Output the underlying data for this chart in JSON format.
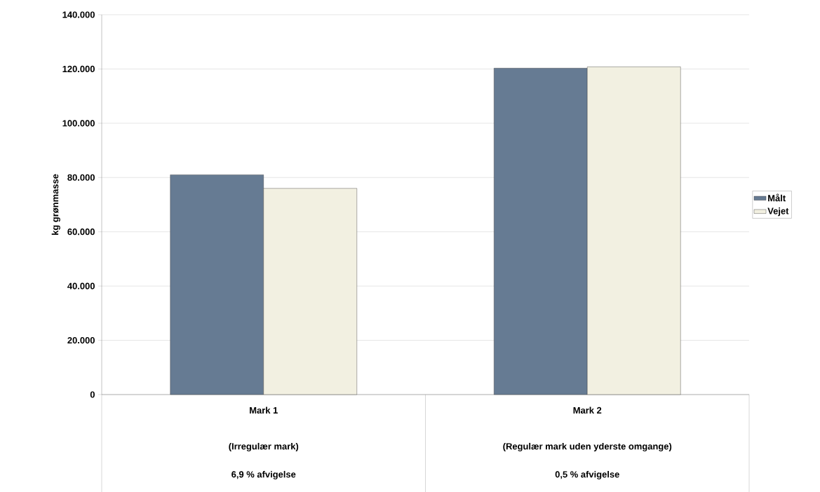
{
  "chart_data": {
    "type": "bar",
    "ylabel": "kg grønmasse",
    "categories": [
      "Mark 1",
      "Mark 2"
    ],
    "series": [
      {
        "name": "Målt",
        "color": "#667b93",
        "values": [
          81000,
          120300
        ]
      },
      {
        "name": "Vejet",
        "color": "#f2f0e1",
        "values": [
          76000,
          120800
        ]
      }
    ],
    "annotations": [
      "(Irregulær mark)",
      "(Regulær mark uden yderste omgange)",
      "6,9 % afvigelse",
      "0,5 % afvigelse"
    ],
    "ylim": [
      0,
      140000
    ],
    "yticks": [
      0,
      {
        "value": 20000,
        "label": "20.000"
      },
      {
        "value": 40000,
        "label": "40.000"
      },
      {
        "value": 60000,
        "label": "60.000"
      },
      {
        "value": 80000,
        "label": "80.000"
      },
      {
        "value": 100000,
        "label": "100.000"
      },
      {
        "value": 120000,
        "label": "120.000"
      },
      {
        "value": 140000,
        "label": "140.000"
      }
    ],
    "grid": "y",
    "legend": "right"
  }
}
